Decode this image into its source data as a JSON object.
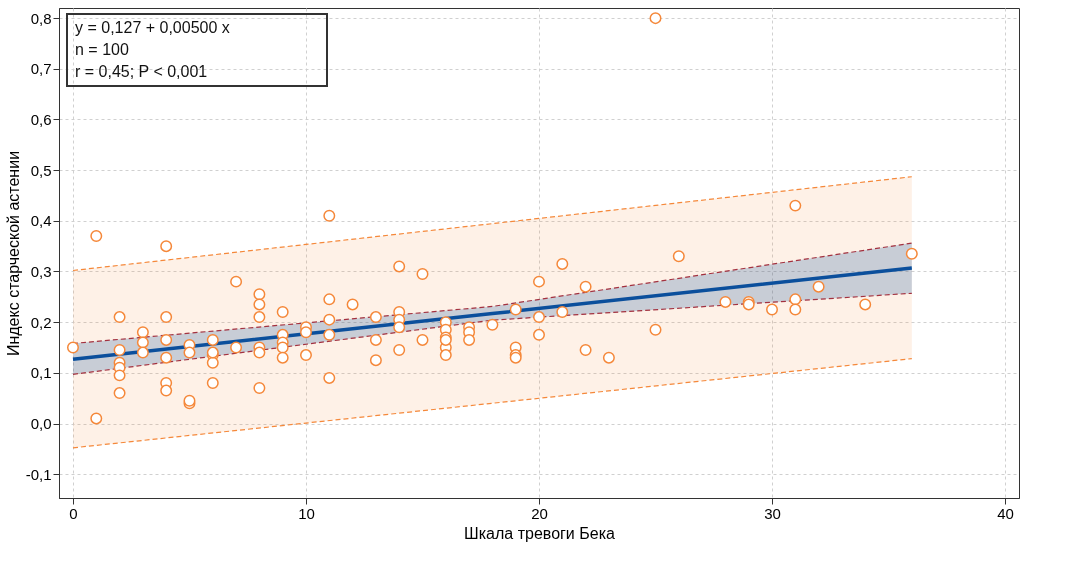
{
  "chart_data": {
    "type": "scatter",
    "xlabel": "Шкала тревоги Бека",
    "ylabel": "Индекс старческой астении",
    "xlim": [
      -0.6,
      40.6
    ],
    "ylim": [
      -0.147,
      0.82
    ],
    "xticks": [
      0,
      10,
      20,
      30,
      40
    ],
    "yticks": [
      {
        "value": -0.1,
        "label": "-0,1"
      },
      {
        "value": 0,
        "label": "0,0"
      },
      {
        "value": 0.1,
        "label": "0,1"
      },
      {
        "value": 0.2,
        "label": "0,2"
      },
      {
        "value": 0.3,
        "label": "0,3"
      },
      {
        "value": 0.4,
        "label": "0,4"
      },
      {
        "value": 0.5,
        "label": "0,5"
      },
      {
        "value": 0.6,
        "label": "0,6"
      },
      {
        "value": 0.7,
        "label": "0,7"
      },
      {
        "value": 0.8,
        "label": "0,8"
      }
    ],
    "grid": true,
    "annotations": [
      "y = 0,127  +  0,00500  x",
      "n = 100",
      "r = 0,45; P < 0,001"
    ],
    "series": [
      {
        "type": "line",
        "line_style": "solid",
        "color": "#f5883a",
        "x": [
          0,
          36
        ],
        "values": [
          null,
          null
        ],
        "lower": [
          -0.048,
          0.128
        ],
        "upper": [
          0.302,
          0.487
        ]
      },
      {
        "type": "line",
        "line_style": "dashed",
        "color": "#f5883a",
        "x": [
          0,
          36
        ],
        "values": [
          0.302,
          0.487
        ]
      },
      {
        "type": "line",
        "line_style": "dashed",
        "color": "#f5883a",
        "x": [
          0,
          36
        ],
        "values": [
          -0.048,
          0.128
        ]
      },
      {
        "type": "line",
        "line_style": "solid",
        "color": "#0b4f9c",
        "x": [
          0,
          18,
          36
        ],
        "values": [
          0.127,
          0.217,
          0.307
        ],
        "lower": [
          0.097,
          0.204,
          0.257
        ],
        "upper": [
          0.158,
          0.231,
          0.356
        ]
      },
      {
        "type": "line",
        "line_style": "dashed",
        "color": "#a3313f",
        "x": [
          0,
          18,
          36
        ],
        "values": [
          0.158,
          0.231,
          0.356
        ]
      },
      {
        "type": "line",
        "line_style": "dashed",
        "color": "#a3313f",
        "x": [
          0,
          18,
          36
        ],
        "values": [
          0.097,
          0.204,
          0.257
        ]
      },
      {
        "color": "#f5883a",
        "marker": "circle",
        "x": [
          0,
          1,
          1,
          2,
          2,
          2,
          2,
          2,
          2,
          3,
          3,
          3,
          4,
          4,
          4,
          4,
          4,
          4,
          5,
          5,
          5,
          5,
          6,
          6,
          6,
          6,
          6,
          7,
          7,
          8,
          8,
          8,
          8,
          8,
          8,
          9,
          9,
          9,
          9,
          9,
          10,
          10,
          10,
          11,
          11,
          11,
          11,
          11,
          12,
          13,
          13,
          13,
          14,
          14,
          14,
          14,
          14,
          15,
          15,
          16,
          16,
          16,
          16,
          16,
          16,
          17,
          17,
          17,
          18,
          19,
          19,
          19,
          19,
          20,
          20,
          20,
          21,
          21,
          22,
          22,
          23,
          25,
          25,
          26,
          28,
          29,
          29,
          30,
          31,
          31,
          31,
          32,
          34,
          36
        ],
        "values": [
          0.15,
          0.37,
          0.01,
          0.21,
          0.145,
          0.12,
          0.11,
          0.095,
          0.06,
          0.18,
          0.16,
          0.14,
          0.35,
          0.21,
          0.165,
          0.13,
          0.08,
          0.065,
          0.155,
          0.14,
          0.04,
          0.045,
          0.165,
          0.135,
          0.12,
          0.08,
          0.14,
          0.28,
          0.15,
          0.255,
          0.235,
          0.21,
          0.15,
          0.14,
          0.07,
          0.22,
          0.175,
          0.16,
          0.15,
          0.13,
          0.19,
          0.18,
          0.135,
          0.41,
          0.245,
          0.205,
          0.175,
          0.09,
          0.235,
          0.21,
          0.165,
          0.125,
          0.31,
          0.22,
          0.205,
          0.19,
          0.145,
          0.295,
          0.165,
          0.2,
          0.185,
          0.17,
          0.15,
          0.135,
          0.165,
          0.19,
          0.18,
          0.165,
          0.195,
          0.225,
          0.15,
          0.135,
          0.13,
          0.28,
          0.21,
          0.175,
          0.315,
          0.22,
          0.27,
          0.145,
          0.13,
          0.8,
          0.185,
          0.33,
          0.24,
          0.24,
          0.235,
          0.225,
          0.43,
          0.245,
          0.225,
          0.27,
          0.235,
          0.335
        ]
      }
    ]
  }
}
